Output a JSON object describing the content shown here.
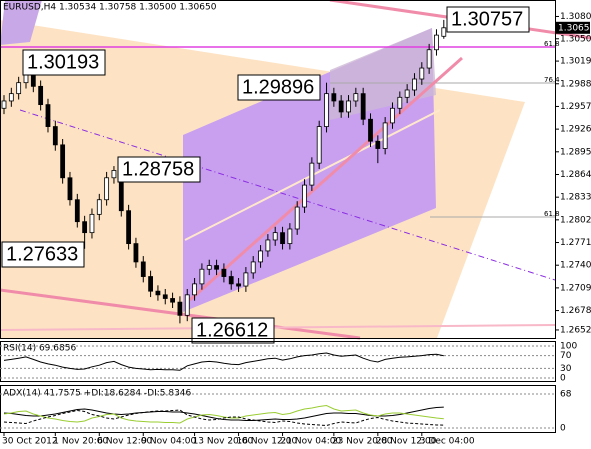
{
  "chart_data": [
    {
      "type": "candlestick",
      "title": "EURUSD,H4  1.30534 1.30758 1.30500 1.30650",
      "categories": [
        "30 Oct 2012",
        null,
        null,
        null,
        null,
        null,
        null,
        "1 Nov 20:00",
        null,
        null,
        null,
        null,
        null,
        "6 Nov 12:00",
        null,
        null,
        null,
        null,
        null,
        "9 Nov 04:00",
        null,
        null,
        null,
        null,
        null,
        null,
        "13 Nov 20:00",
        null,
        null,
        null,
        null,
        null,
        "16 Nov 12:00",
        null,
        null,
        null,
        null,
        null,
        "21 Nov 04:00",
        null,
        null,
        null,
        null,
        null,
        null,
        "23 Nov 20:00",
        null,
        null,
        null,
        null,
        null,
        "28 Nov 12:00",
        null,
        null,
        null,
        null,
        null,
        "3 Dec 04:00",
        null,
        null,
        null
      ],
      "ohlc": [
        [
          1.2955,
          1.2973,
          1.2947,
          1.2965
        ],
        [
          1.2965,
          1.2983,
          1.2957,
          1.2975
        ],
        [
          1.2975,
          1.2998,
          1.2967,
          1.299
        ],
        [
          1.299,
          1.3019,
          1.2982,
          1.301
        ],
        [
          1.301,
          1.3018,
          1.2977,
          1.2985
        ],
        [
          1.2985,
          1.2993,
          1.2952,
          1.296
        ],
        [
          1.296,
          1.2968,
          1.2922,
          1.293
        ],
        [
          1.293,
          1.2938,
          1.2897,
          1.2905
        ],
        [
          1.2905,
          1.2913,
          1.2852,
          1.286
        ],
        [
          1.286,
          1.2868,
          1.2822,
          1.283
        ],
        [
          1.283,
          1.2838,
          1.2792,
          1.28
        ],
        [
          1.28,
          1.2808,
          1.2763,
          1.2785
        ],
        [
          1.2785,
          1.2818,
          1.2777,
          1.281
        ],
        [
          1.281,
          1.2838,
          1.2802,
          1.283
        ],
        [
          1.283,
          1.2868,
          1.2822,
          1.286
        ],
        [
          1.286,
          1.2876,
          1.2852,
          1.287
        ],
        [
          1.287,
          1.2878,
          1.2807,
          1.2815
        ],
        [
          1.2815,
          1.2823,
          1.2762,
          1.277
        ],
        [
          1.277,
          1.2778,
          1.2737,
          1.2745
        ],
        [
          1.2745,
          1.2753,
          1.2717,
          1.2725
        ],
        [
          1.2725,
          1.2733,
          1.2697,
          1.2705
        ],
        [
          1.2705,
          1.2713,
          1.2692,
          1.27
        ],
        [
          1.27,
          1.2708,
          1.2687,
          1.2695
        ],
        [
          1.2695,
          1.2703,
          1.2682,
          1.269
        ],
        [
          1.269,
          1.2698,
          1.2661,
          1.2672
        ],
        [
          1.2672,
          1.2708,
          1.2664,
          1.27
        ],
        [
          1.27,
          1.2723,
          1.2692,
          1.2715
        ],
        [
          1.2715,
          1.2743,
          1.2707,
          1.2735
        ],
        [
          1.2735,
          1.2748,
          1.2727,
          1.274
        ],
        [
          1.274,
          1.2748,
          1.2727,
          1.2735
        ],
        [
          1.2735,
          1.2743,
          1.2717,
          1.2725
        ],
        [
          1.2725,
          1.2733,
          1.2707,
          1.2715
        ],
        [
          1.2715,
          1.2723,
          1.2704,
          1.2712
        ],
        [
          1.2712,
          1.2738,
          1.2704,
          1.273
        ],
        [
          1.273,
          1.2753,
          1.2722,
          1.2745
        ],
        [
          1.2745,
          1.2768,
          1.2737,
          1.276
        ],
        [
          1.276,
          1.2783,
          1.2752,
          1.2775
        ],
        [
          1.2775,
          1.2793,
          1.2767,
          1.2785
        ],
        [
          1.2785,
          1.2793,
          1.2762,
          1.277
        ],
        [
          1.277,
          1.2798,
          1.2762,
          1.279
        ],
        [
          1.279,
          1.2828,
          1.2782,
          1.282
        ],
        [
          1.282,
          1.2858,
          1.2812,
          1.285
        ],
        [
          1.285,
          1.2888,
          1.2842,
          1.288
        ],
        [
          1.288,
          1.2938,
          1.2872,
          1.293
        ],
        [
          1.293,
          1.299,
          1.2922,
          1.2975
        ],
        [
          1.2975,
          1.2983,
          1.2957,
          1.2965
        ],
        [
          1.2965,
          1.2973,
          1.2942,
          1.295
        ],
        [
          1.295,
          1.2973,
          1.2942,
          1.2965
        ],
        [
          1.2965,
          1.2983,
          1.2957,
          1.2975
        ],
        [
          1.2975,
          1.2983,
          1.2932,
          1.294
        ],
        [
          1.294,
          1.2948,
          1.2902,
          1.291
        ],
        [
          1.291,
          1.2918,
          1.288,
          1.29
        ],
        [
          1.29,
          1.2943,
          1.2892,
          1.2935
        ],
        [
          1.2935,
          1.2963,
          1.2927,
          1.2955
        ],
        [
          1.2955,
          1.2978,
          1.2947,
          1.297
        ],
        [
          1.297,
          1.2988,
          1.2962,
          1.298
        ],
        [
          1.298,
          1.3003,
          1.2972,
          1.2995
        ],
        [
          1.2995,
          1.3018,
          1.2987,
          1.301
        ],
        [
          1.301,
          1.3043,
          1.3002,
          1.3035
        ],
        [
          1.3035,
          1.3063,
          1.3027,
          1.3055
        ],
        [
          1.30534,
          1.30758,
          1.305,
          1.3065
        ]
      ],
      "bull_color": "#ffffff",
      "bear_color": "#000000",
      "ylim": [
        1.2641,
        1.3103
      ],
      "yticks": [
        1.30805,
        {
          "value": 1.305,
          "label": "1.30500"
        },
        1.30195,
        1.29885,
        1.29575,
        1.29265,
        1.28955,
        1.28645,
        1.28335,
        1.28025,
        1.27715,
        1.27405,
        1.27095,
        1.26785,
        {
          "value": 1.2652,
          "label": "1.26520"
        }
      ],
      "current_price": {
        "value": 1.3065,
        "label": "1.30650"
      },
      "annotations": [
        "1.30193",
        "1.28758",
        "1.27633",
        "1.26612",
        "1.29896",
        "1.30757"
      ],
      "level_labels": [
        "61.8",
        "76.4",
        "61.8"
      ]
    },
    {
      "type": "line",
      "title": "RSI(14) 69.6856",
      "series": [
        {
          "color": "#000000",
          "values": [
            55,
            58,
            62,
            66,
            58,
            50,
            44,
            40,
            34,
            30,
            27,
            28,
            35,
            40,
            48,
            52,
            42,
            34,
            30,
            28,
            26,
            27,
            26,
            26,
            24,
            38,
            44,
            50,
            52,
            50,
            46,
            43,
            42,
            48,
            52,
            56,
            60,
            62,
            56,
            60,
            66,
            70,
            72,
            76,
            78,
            72,
            68,
            70,
            72,
            62,
            54,
            50,
            58,
            62,
            65,
            66,
            68,
            70,
            73,
            74,
            69.6856
          ]
        }
      ],
      "ylim": [
        0,
        100
      ],
      "yticks": [
        100,
        70,
        30,
        0
      ]
    },
    {
      "type": "line",
      "title": "ADX(14) 41.7575 +DI:18.6284 -DI:5.8346",
      "series": [
        {
          "color": "#000000",
          "dash": false,
          "values": [
            30,
            29,
            27,
            25,
            24,
            24,
            26,
            28,
            31,
            34,
            37,
            38,
            36,
            33,
            30,
            28,
            27,
            28,
            30,
            31,
            32,
            33,
            33,
            32,
            32,
            30,
            28,
            25,
            22,
            19,
            17,
            16,
            16,
            15,
            15,
            16,
            17,
            18,
            17,
            17,
            18,
            20,
            23,
            26,
            29,
            30,
            30,
            29,
            29,
            27,
            25,
            24,
            24,
            25,
            27,
            30,
            33,
            36,
            39,
            41,
            41.7575
          ]
        },
        {
          "color": "#9acd32",
          "dash": false,
          "values": [
            28,
            30,
            33,
            34,
            28,
            24,
            20,
            18,
            15,
            13,
            12,
            14,
            20,
            23,
            27,
            28,
            20,
            16,
            14,
            13,
            12,
            12,
            11,
            11,
            10,
            18,
            22,
            26,
            27,
            25,
            22,
            20,
            20,
            24,
            26,
            28,
            30,
            31,
            27,
            29,
            34,
            38,
            40,
            43,
            45,
            38,
            34,
            35,
            36,
            30,
            26,
            24,
            28,
            30,
            30,
            28,
            26,
            24,
            22,
            20,
            18.6284
          ]
        },
        {
          "color": "#000000",
          "dash": true,
          "values": [
            12,
            11,
            10,
            9,
            14,
            18,
            22,
            25,
            29,
            32,
            35,
            33,
            27,
            24,
            20,
            18,
            22,
            26,
            29,
            31,
            33,
            34,
            34,
            35,
            36,
            26,
            22,
            18,
            16,
            17,
            20,
            22,
            22,
            18,
            16,
            14,
            12,
            11,
            14,
            13,
            10,
            8,
            7,
            6,
            5,
            9,
            12,
            11,
            10,
            15,
            19,
            21,
            17,
            14,
            12,
            10,
            9,
            8,
            7,
            6,
            5.8346
          ]
        }
      ],
      "ylim": [
        0,
        68
      ],
      "yticks": [
        68,
        0
      ]
    }
  ]
}
